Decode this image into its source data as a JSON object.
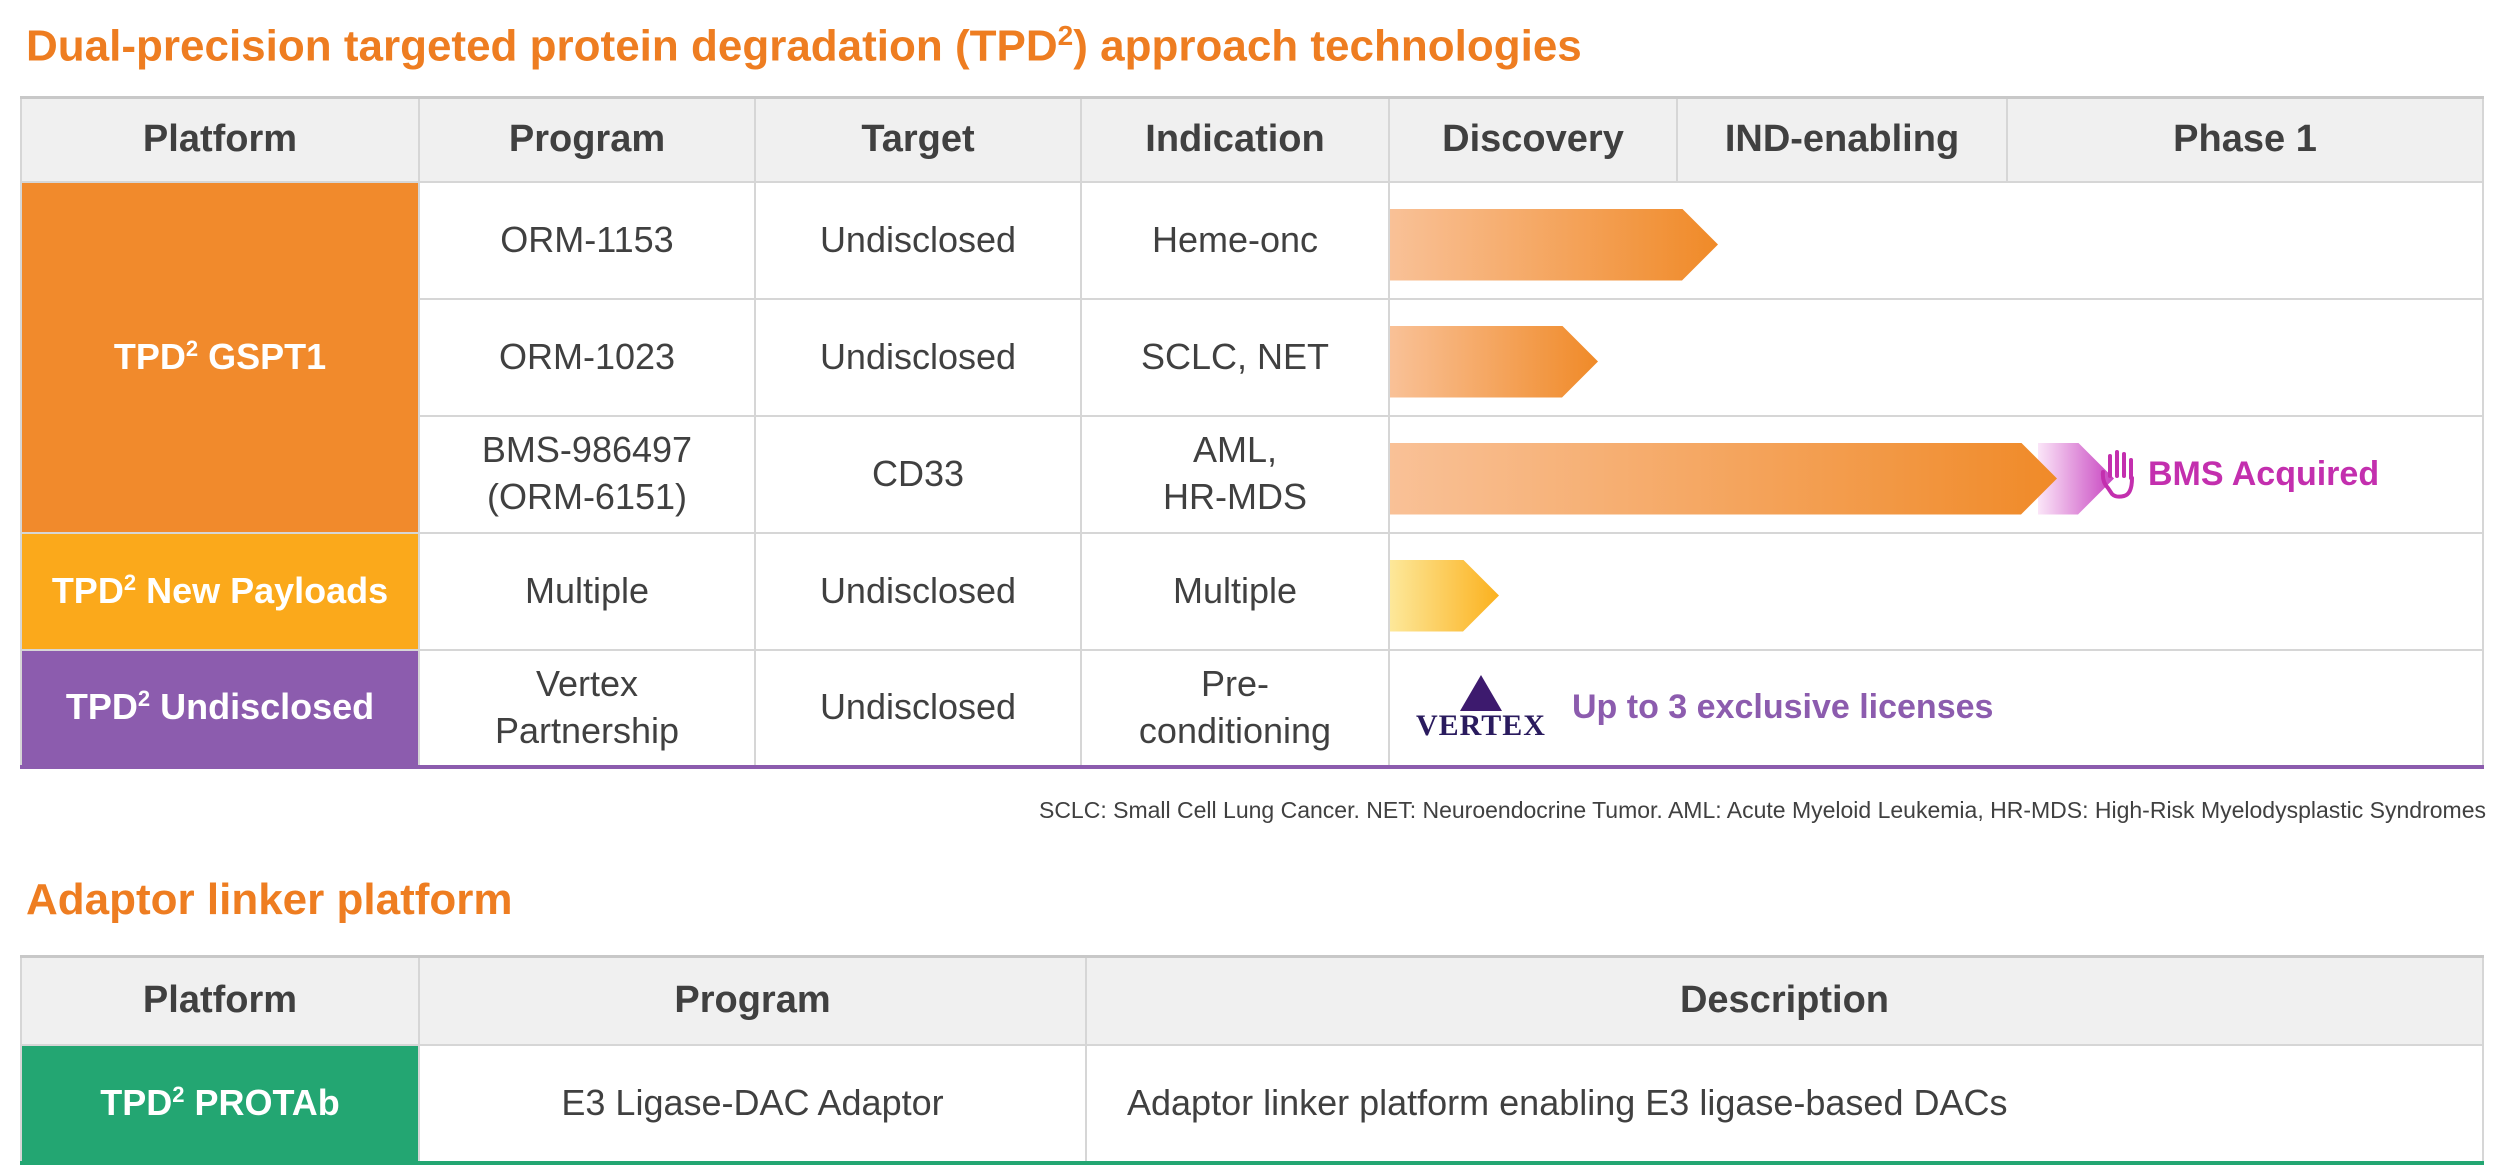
{
  "section1": {
    "title_main": "Dual-precision targeted protein degradation (TPD",
    "title_sup": "2",
    "title_end": ") approach technologies",
    "headers": {
      "platform": "Platform",
      "program": "Program",
      "target": "Target",
      "indication": "Indication",
      "discovery": "Discovery",
      "ind_enabling": "IND-enabling",
      "phase1": "Phase 1"
    },
    "platforms": [
      {
        "prefix": "TPD",
        "sup": "2",
        "suffix": " GSPT1",
        "color": "#f18a2c"
      },
      {
        "prefix": "TPD",
        "sup": "2",
        "suffix": " New Payloads",
        "color": "#fba91b"
      },
      {
        "prefix": "TPD",
        "sup": "2",
        "suffix": " Undisclosed",
        "color": "#8c5cae"
      }
    ],
    "rows": [
      {
        "program": "ORM-1153",
        "target": "Undisclosed",
        "indication": "Heme-onc",
        "progress": 0.3
      },
      {
        "program": "ORM-1023",
        "target": "Undisclosed",
        "indication": "SCLC, NET",
        "progress": 0.19
      },
      {
        "program_line1": "BMS-986497",
        "program_line2": "(ORM-6151)",
        "target": "CD33",
        "indication_line1": "AML,",
        "indication_line2": "HR-MDS",
        "progress": 0.61,
        "status": "BMS Acquired"
      },
      {
        "program": "Multiple",
        "target": "Undisclosed",
        "indication": "Multiple",
        "progress": 0.1
      },
      {
        "program_line1": "Vertex",
        "program_line2": "Partnership",
        "target": "Undisclosed",
        "indication_line1": "Pre-",
        "indication_line2": "conditioning",
        "partner_logo": "VERTEX",
        "partner_note": "Up to 3 exclusive licenses"
      }
    ],
    "footnote": "SCLC: Small Cell Lung Cancer. NET: Neuroendocrine Tumor. AML: Acute Myeloid Leukemia, HR-MDS: High-Risk Myelodysplastic Syndromes"
  },
  "section2": {
    "title": "Adaptor linker platform",
    "headers": {
      "platform": "Platform",
      "program": "Program",
      "description": "Description"
    },
    "row": {
      "platform_prefix": "TPD",
      "platform_sup": "2",
      "platform_suffix": " PROTAb",
      "program": "E3 Ligase-DAC Adaptor",
      "description": "Adaptor linker platform enabling E3 ligase-based DACs"
    }
  },
  "icons": {
    "bms": "hand-stop-icon",
    "vertex": "vertex-logo-icon"
  },
  "colors": {
    "accent": "#ee7d21",
    "acquired": "#c32fae",
    "vertex": "#8c5cae",
    "green": "#23a672"
  }
}
